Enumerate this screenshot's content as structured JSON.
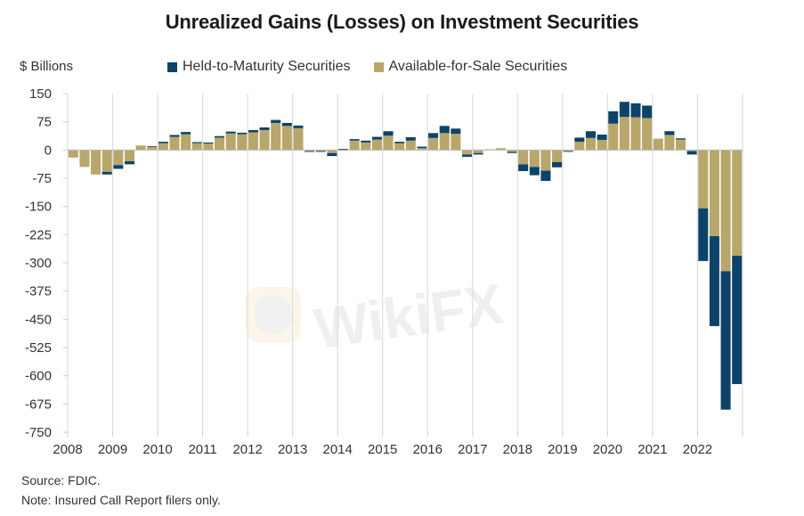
{
  "chart_data": {
    "type": "bar",
    "stacked": true,
    "title": "Unrealized Gains (Losses) on Investment Securities",
    "ylabel": "$ Billions",
    "xlabel": "",
    "ylim": [
      -750,
      150
    ],
    "yticks": [
      150,
      75,
      0,
      -75,
      -150,
      -225,
      -300,
      -375,
      -450,
      -525,
      -600,
      -675,
      -750
    ],
    "xtick_labels": [
      "2008",
      "2009",
      "2010",
      "2011",
      "2012",
      "2013",
      "2014",
      "2015",
      "2016",
      "2017",
      "2018",
      "2019",
      "2020",
      "2021",
      "2022"
    ],
    "grid": "vertical",
    "legend_position": "top",
    "categories": [
      "2008Q1",
      "2008Q2",
      "2008Q3",
      "2008Q4",
      "2009Q1",
      "2009Q2",
      "2009Q3",
      "2009Q4",
      "2010Q1",
      "2010Q2",
      "2010Q3",
      "2010Q4",
      "2011Q1",
      "2011Q2",
      "2011Q3",
      "2011Q4",
      "2012Q1",
      "2012Q2",
      "2012Q3",
      "2012Q4",
      "2013Q1",
      "2013Q2",
      "2013Q3",
      "2013Q4",
      "2014Q1",
      "2014Q2",
      "2014Q3",
      "2014Q4",
      "2015Q1",
      "2015Q2",
      "2015Q3",
      "2015Q4",
      "2016Q1",
      "2016Q2",
      "2016Q3",
      "2016Q4",
      "2017Q1",
      "2017Q2",
      "2017Q3",
      "2017Q4",
      "2018Q1",
      "2018Q2",
      "2018Q3",
      "2018Q4",
      "2019Q1",
      "2019Q2",
      "2019Q3",
      "2019Q4",
      "2020Q1",
      "2020Q2",
      "2020Q3",
      "2020Q4",
      "2021Q1",
      "2021Q2",
      "2021Q3",
      "2021Q4",
      "2022Q1",
      "2022Q2",
      "2022Q3",
      "2022Q4"
    ],
    "series": [
      {
        "name": "Available-for-Sale Securities",
        "color": "#b8a66b",
        "values": [
          -20,
          -45,
          -65,
          -58,
          -40,
          -30,
          12,
          8,
          18,
          35,
          42,
          18,
          17,
          33,
          44,
          42,
          47,
          53,
          72,
          64,
          58,
          -3,
          -3,
          -8,
          -2,
          25,
          20,
          28,
          38,
          18,
          25,
          5,
          32,
          45,
          43,
          -12,
          -8,
          2,
          5,
          -5,
          -38,
          -45,
          -55,
          -32,
          -3,
          22,
          32,
          27,
          70,
          88,
          87,
          85,
          30,
          40,
          28,
          -3,
          -155,
          -229,
          -322,
          -281
        ]
      },
      {
        "name": "Held-to-Maturity Securities",
        "color": "#0d4368",
        "values": [
          0,
          0,
          0,
          -7,
          -10,
          -8,
          0,
          2,
          4,
          5,
          6,
          3,
          3,
          4,
          5,
          4,
          6,
          7,
          8,
          8,
          7,
          -2,
          -2,
          -8,
          3,
          4,
          5,
          7,
          12,
          4,
          9,
          4,
          13,
          19,
          14,
          -6,
          -4,
          0,
          0,
          -3,
          -18,
          -22,
          -27,
          -14,
          -1,
          11,
          18,
          14,
          33,
          40,
          37,
          33,
          0,
          10,
          3,
          -9,
          -140,
          -239,
          -368,
          -341
        ]
      }
    ]
  },
  "header": {
    "title": "Unrealized Gains (Losses) on Investment Securities",
    "unit_label": "$ Billions"
  },
  "legend": {
    "items": [
      {
        "label": "Held-to-Maturity Securities",
        "color": "#0d4368"
      },
      {
        "label": "Available-for-Sale Securities",
        "color": "#b8a66b"
      }
    ]
  },
  "footer": {
    "source": "Source: FDIC.",
    "note": "Note: Insured Call Report filers only."
  },
  "watermark": {
    "text": "WikiFX"
  }
}
